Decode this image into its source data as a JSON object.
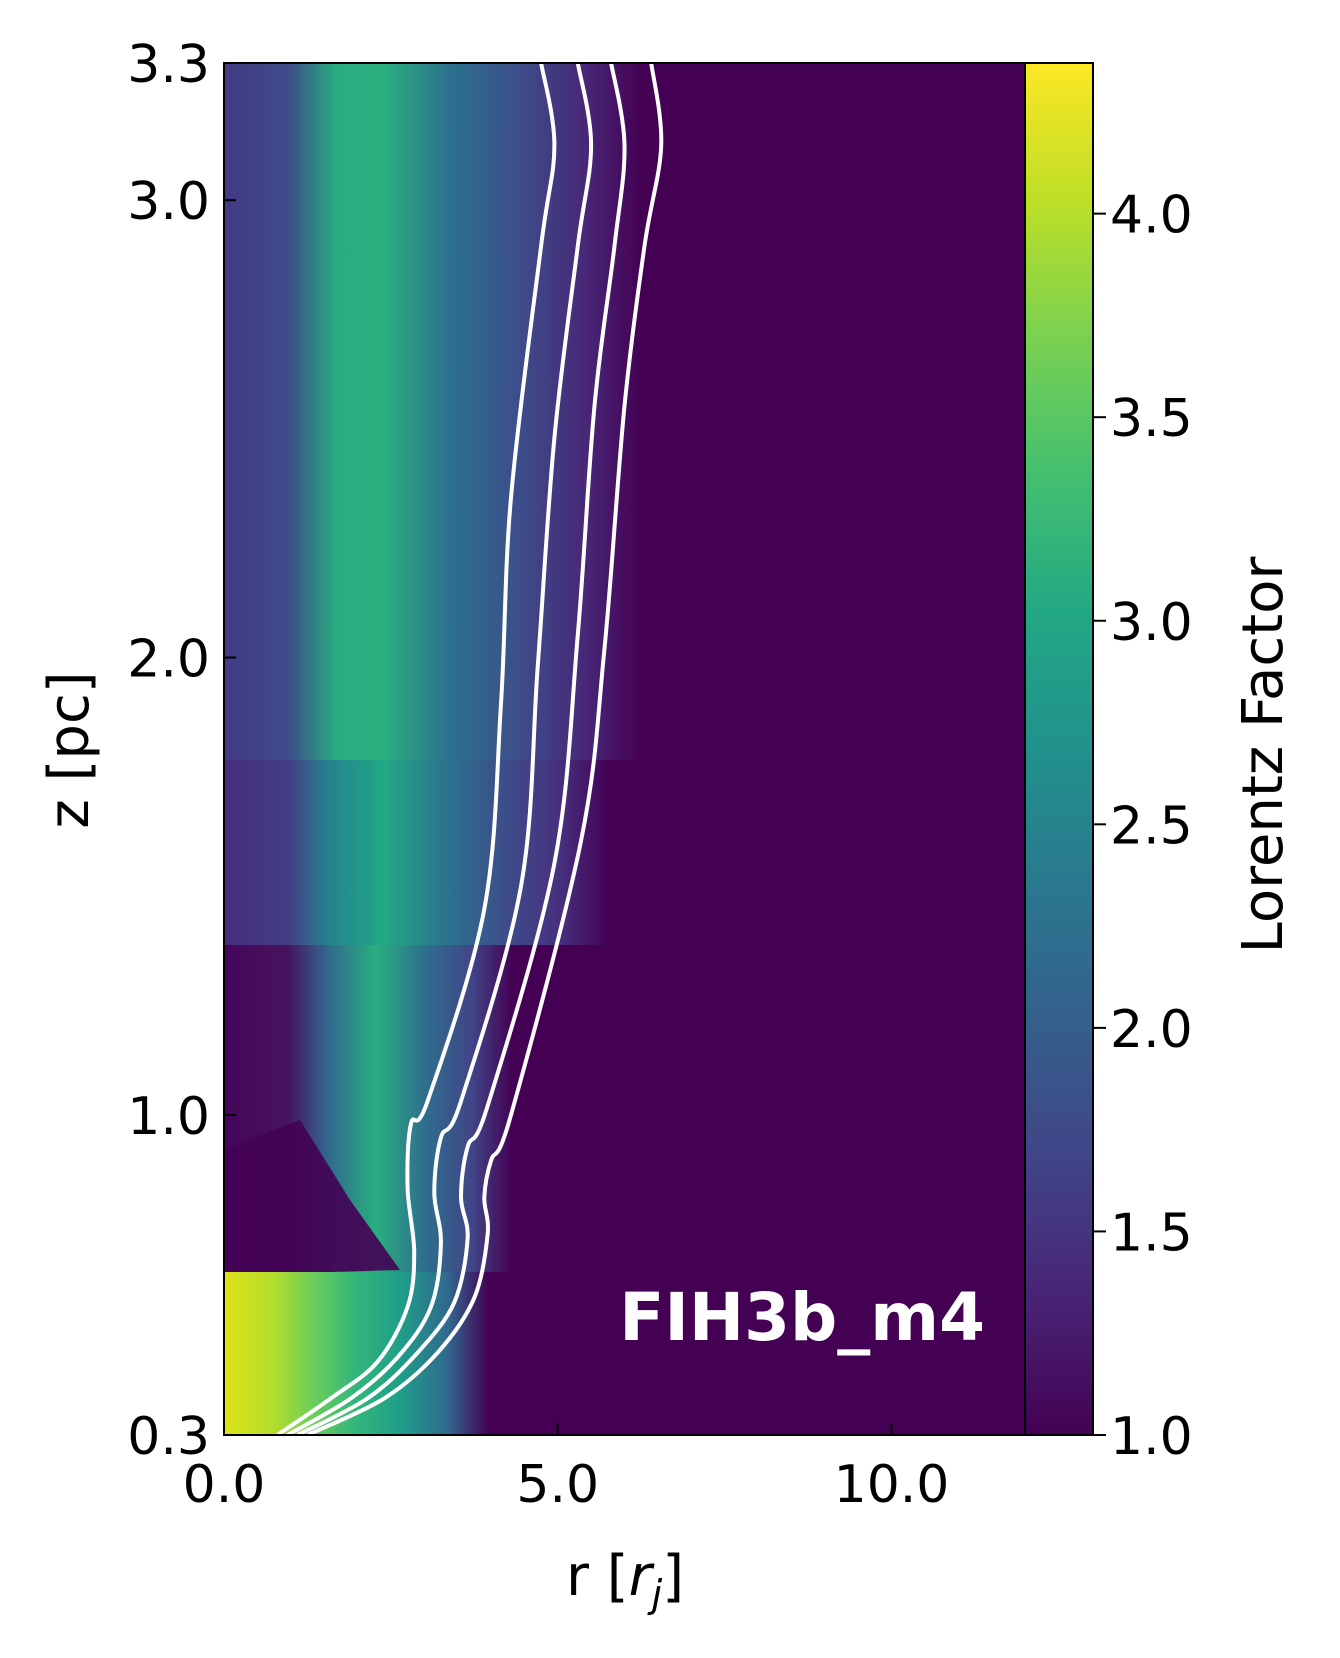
{
  "chart_data": {
    "type": "heatmap",
    "panel_label": "FIH3b_m4",
    "xlabel": {
      "prefix": "r [",
      "symbol": "r",
      "subscript": "j",
      "suffix": "]"
    },
    "ylabel": "z [pc]",
    "xlim": [
      0.0,
      12.0
    ],
    "ylim": [
      0.3,
      3.3
    ],
    "x_ticks": [
      {
        "value": 0.0,
        "label": "0.0"
      },
      {
        "value": 5.0,
        "label": "5.0"
      },
      {
        "value": 10.0,
        "label": "10.0"
      }
    ],
    "y_ticks": [
      {
        "value": 0.3,
        "label": "0.3"
      },
      {
        "value": 1.0,
        "label": "1.0"
      },
      {
        "value": 2.0,
        "label": "2.0"
      },
      {
        "value": 3.0,
        "label": "3.0"
      },
      {
        "value": 3.3,
        "label": "3.3"
      }
    ],
    "colorbar": {
      "label": "Lorentz Factor",
      "colormap": "viridis",
      "range": [
        1.0,
        4.37
      ],
      "ticks": [
        {
          "value": 1.0,
          "label": "1.0"
        },
        {
          "value": 1.5,
          "label": "1.5"
        },
        {
          "value": 2.0,
          "label": "2.0"
        },
        {
          "value": 2.5,
          "label": "2.5"
        },
        {
          "value": 3.0,
          "label": "3.0"
        },
        {
          "value": 3.5,
          "label": "3.5"
        },
        {
          "value": 4.0,
          "label": "4.0"
        }
      ]
    },
    "contours": [
      {
        "name": "contour-1",
        "points": [
          [
            0.8,
            0.3
          ],
          [
            1.6,
            0.38
          ],
          [
            2.3,
            0.46
          ],
          [
            2.75,
            0.58
          ],
          [
            2.85,
            0.7
          ],
          [
            2.75,
            0.84
          ],
          [
            2.8,
            0.98
          ],
          [
            3.05,
            1.03
          ],
          [
            3.9,
            1.45
          ],
          [
            4.15,
            1.9
          ],
          [
            4.3,
            2.35
          ],
          [
            4.75,
            2.9
          ],
          [
            4.95,
            3.12
          ],
          [
            4.75,
            3.3
          ]
        ]
      },
      {
        "name": "contour-2",
        "points": [
          [
            0.95,
            0.3
          ],
          [
            1.9,
            0.38
          ],
          [
            2.6,
            0.47
          ],
          [
            3.1,
            0.58
          ],
          [
            3.25,
            0.72
          ],
          [
            3.15,
            0.83
          ],
          [
            3.25,
            0.95
          ],
          [
            3.55,
            1.03
          ],
          [
            4.45,
            1.5
          ],
          [
            4.7,
            1.98
          ],
          [
            4.95,
            2.48
          ],
          [
            5.3,
            2.9
          ],
          [
            5.5,
            3.12
          ],
          [
            5.3,
            3.3
          ]
        ]
      },
      {
        "name": "contour-3",
        "points": [
          [
            1.1,
            0.3
          ],
          [
            2.15,
            0.38
          ],
          [
            2.9,
            0.48
          ],
          [
            3.45,
            0.59
          ],
          [
            3.65,
            0.73
          ],
          [
            3.55,
            0.82
          ],
          [
            3.65,
            0.93
          ],
          [
            3.95,
            1.02
          ],
          [
            4.95,
            1.55
          ],
          [
            5.3,
            2.05
          ],
          [
            5.55,
            2.55
          ],
          [
            5.85,
            2.9
          ],
          [
            6.0,
            3.12
          ],
          [
            5.8,
            3.3
          ]
        ]
      },
      {
        "name": "contour-4",
        "points": [
          [
            1.25,
            0.3
          ],
          [
            2.4,
            0.38
          ],
          [
            3.2,
            0.48
          ],
          [
            3.75,
            0.6
          ],
          [
            3.95,
            0.74
          ],
          [
            3.9,
            0.82
          ],
          [
            4.0,
            0.9
          ],
          [
            4.3,
            1.0
          ],
          [
            5.35,
            1.6
          ],
          [
            5.7,
            2.02
          ],
          [
            6.0,
            2.55
          ],
          [
            6.3,
            2.9
          ],
          [
            6.55,
            3.12
          ],
          [
            6.4,
            3.3
          ]
        ]
      }
    ]
  }
}
